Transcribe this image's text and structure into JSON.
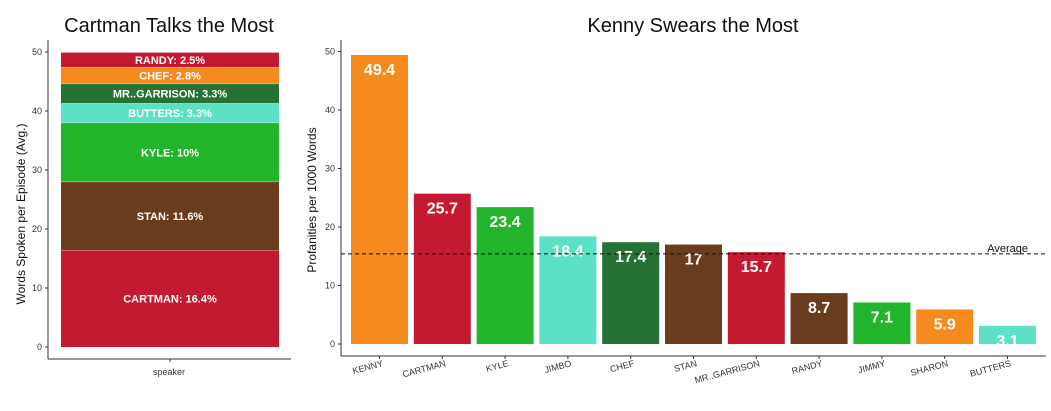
{
  "colors": {
    "red": "#c41a31",
    "brown": "#6a3c1e",
    "green": "#22b52b",
    "mint": "#5ce0c6",
    "darkgreen": "#257234",
    "orange": "#f58a1e"
  },
  "chart_data": [
    {
      "type": "bar",
      "stacked": true,
      "title": "Cartman Talks the Most",
      "xlabel": "speaker",
      "ylabel": "Words Spoken per Episode (Avg.)",
      "ylim": [
        0,
        52
      ],
      "yticks": [
        "0",
        "10",
        "20",
        "30",
        "40",
        "50"
      ],
      "grid": false,
      "segments": [
        {
          "label": "CARTMAN: 16.4%",
          "value": 16.4,
          "color": "#c41a31"
        },
        {
          "label": "STAN: 11.6%",
          "value": 11.6,
          "color": "#6a3c1e"
        },
        {
          "label": "KYLE: 10%",
          "value": 10.0,
          "color": "#22b52b"
        },
        {
          "label": "BUTTERS: 3.3%",
          "value": 3.3,
          "color": "#5ce0c6"
        },
        {
          "label": "MR..GARRISON: 3.3%",
          "value": 3.3,
          "color": "#257234"
        },
        {
          "label": "CHEF: 2.8%",
          "value": 2.8,
          "color": "#f58a1e"
        },
        {
          "label": "RANDY: 2.5%",
          "value": 2.5,
          "color": "#c41a31"
        }
      ]
    },
    {
      "type": "bar",
      "title": "Kenny Swears the Most",
      "xlabel": "",
      "ylabel": "Profanities per 1000 Words",
      "ylim": [
        0,
        52
      ],
      "yticks": [
        "0",
        "10",
        "20",
        "30",
        "40",
        "50"
      ],
      "grid": false,
      "categories": [
        "KENNY",
        "CARTMAN",
        "KYLE",
        "JIMBO",
        "CHEF",
        "STAN",
        "MR..GARRISON",
        "RANDY",
        "JIMMY",
        "SHARON",
        "BUTTERS"
      ],
      "values": [
        49.4,
        25.7,
        23.4,
        18.4,
        17.4,
        17.0,
        15.7,
        8.7,
        7.1,
        5.9,
        3.1
      ],
      "value_labels": [
        "49.4",
        "25.7",
        "23.4",
        "18.4",
        "17.4",
        "17",
        "15.7",
        "8.7",
        "7.1",
        "5.9",
        "3.1"
      ],
      "bar_colors": [
        "#f58a1e",
        "#c41a31",
        "#22b52b",
        "#5ce0c6",
        "#257234",
        "#6a3c1e",
        "#c41a31",
        "#6a3c1e",
        "#22b52b",
        "#f58a1e",
        "#5ce0c6"
      ],
      "reference_line": {
        "label": "Average",
        "value": 15.4
      }
    }
  ]
}
